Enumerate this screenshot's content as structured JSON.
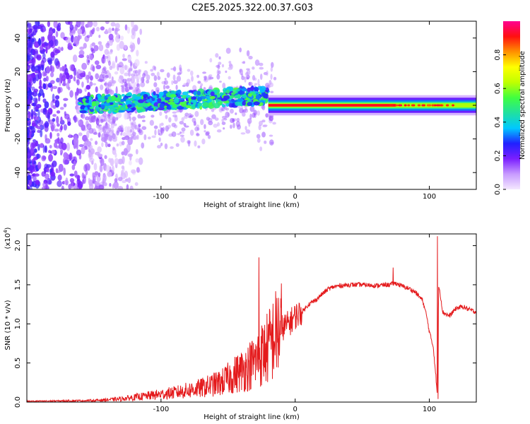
{
  "title": "C2E5.2025.322.00.37.G03",
  "chart_data": [
    {
      "type": "heatmap",
      "name": "spectrogram",
      "xlabel": "Height of straight line (km)",
      "ylabel": "Frequency (Hz)",
      "xlim": [
        -200,
        135
      ],
      "ylim": [
        -50,
        50
      ],
      "xticks": [
        -100,
        0,
        100
      ],
      "xtick_labels": [
        "-100",
        "0",
        "100"
      ],
      "yticks": [
        -40,
        -20,
        0,
        20,
        40
      ],
      "ytick_labels": [
        "-40",
        "-20",
        "0",
        "20",
        "40"
      ],
      "colorbar": {
        "label": "Normalized spectral amplitude",
        "range": [
          0,
          1
        ],
        "ticks": [
          0,
          0.2,
          0.4,
          0.6,
          0.8
        ],
        "tick_labels": [
          "0.0",
          "0.2",
          "0.4",
          "0.6",
          "0.8"
        ],
        "colors": [
          "#f4e8ff",
          "#c89bff",
          "#7b1fff",
          "#2020ff",
          "#00c8ff",
          "#20e0a0",
          "#40ff40",
          "#c0ff00",
          "#ffff00",
          "#ff9000",
          "#ff1010",
          "#ff0090"
        ]
      },
      "features": {
        "noise_region_x": [
          -200,
          -130
        ],
        "broadband_blobs_x": [
          -160,
          -20
        ],
        "steady_band_x": [
          -20,
          135
        ],
        "steady_band_center_hz": 0,
        "red_core_x": [
          -20,
          75
        ]
      }
    },
    {
      "type": "line",
      "name": "snr",
      "xlabel": "Height of straight line (km)",
      "ylabel": "SNR (10 * v/v)",
      "multiplier_label": "(x10",
      "multiplier_exp": "4",
      "xlim": [
        -200,
        135
      ],
      "ylim": [
        0,
        2.15
      ],
      "xticks": [
        -100,
        0,
        100
      ],
      "xtick_labels": [
        "-100",
        "0",
        "100"
      ],
      "yticks": [
        0,
        0.5,
        1.0,
        1.5,
        2.0
      ],
      "ytick_labels": [
        "0.0",
        "0.5",
        "1.0",
        "1.5",
        "2.0"
      ],
      "color": "#e41a1c",
      "series_envelope": {
        "x": [
          -200,
          -150,
          -130,
          -110,
          -90,
          -70,
          -55,
          -45,
          -35,
          -28,
          -20,
          -15,
          -10,
          -5,
          0,
          5,
          10,
          15,
          20,
          25,
          30,
          40,
          50,
          60,
          70,
          75,
          80,
          85,
          90,
          95,
          98,
          100,
          103,
          105,
          106,
          107,
          108,
          110,
          115,
          120,
          125,
          130,
          135
        ],
        "y": [
          0.01,
          0.02,
          0.04,
          0.08,
          0.12,
          0.18,
          0.25,
          0.35,
          0.45,
          0.55,
          0.7,
          0.85,
          0.95,
          1.0,
          1.1,
          1.15,
          1.25,
          1.3,
          1.38,
          1.45,
          1.48,
          1.5,
          1.5,
          1.49,
          1.5,
          1.52,
          1.48,
          1.45,
          1.4,
          1.3,
          1.1,
          0.9,
          0.7,
          0.3,
          0.05,
          1.5,
          1.4,
          1.15,
          1.1,
          1.2,
          1.22,
          1.18,
          1.15
        ]
      },
      "spikes": [
        {
          "x": -27,
          "y": 1.85
        },
        {
          "x": 73,
          "y": 1.72
        },
        {
          "x": 106,
          "y": 2.12
        },
        {
          "x": 106.5,
          "y": 0.04
        }
      ]
    }
  ]
}
